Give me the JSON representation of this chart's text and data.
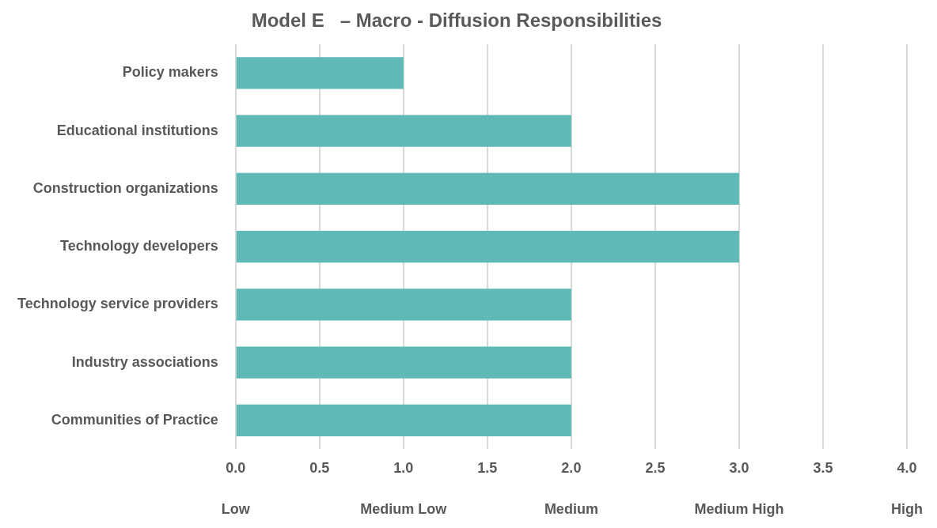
{
  "chart_data": {
    "type": "bar",
    "orientation": "horizontal",
    "title": "Model E   – Macro - Diffusion Responsibilities",
    "categories": [
      "Policy makers",
      "Educational institutions",
      "Construction organizations",
      "Technology developers",
      "Technology service providers",
      "Industry associations",
      "Communities of Practice"
    ],
    "values": [
      1,
      2,
      3,
      3,
      2,
      2,
      2
    ],
    "color": "#5fbab7",
    "xlim": [
      0,
      4
    ],
    "xticks": [
      {
        "value": 0,
        "label": "0.0"
      },
      {
        "value": 0.5,
        "label": "0.5"
      },
      {
        "value": 1,
        "label": "1.0"
      },
      {
        "value": 1.5,
        "label": "1.5"
      },
      {
        "value": 2,
        "label": "2.0"
      },
      {
        "value": 2.5,
        "label": "2.5"
      },
      {
        "value": 3,
        "label": "3.0"
      },
      {
        "value": 3.5,
        "label": "3.5"
      },
      {
        "value": 4,
        "label": "4.0"
      }
    ],
    "annotations": [
      "Low",
      "Medium Low",
      "Medium",
      "Medium High",
      "High"
    ],
    "grid": "x",
    "legend": false
  }
}
